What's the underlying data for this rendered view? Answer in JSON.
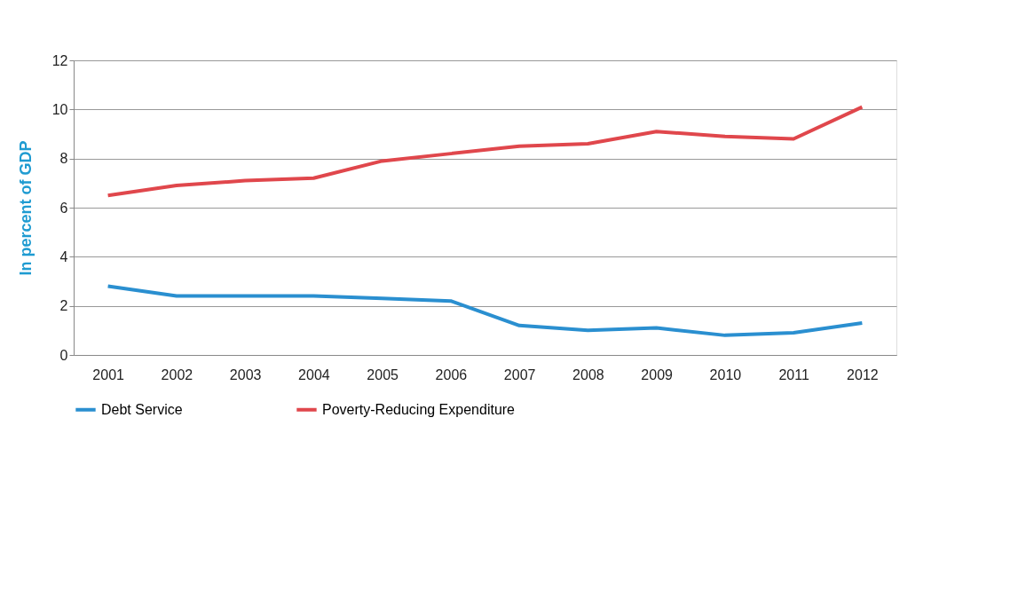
{
  "chart_data": {
    "type": "line",
    "ylabel": "In percent of GDP",
    "categories": [
      "2001",
      "2002",
      "2003",
      "2004",
      "2005",
      "2006",
      "2007",
      "2008",
      "2009",
      "2010",
      "2011",
      "2012"
    ],
    "series": [
      {
        "name": "Debt Service",
        "color": "#2a8fd0",
        "values": [
          2.8,
          2.4,
          2.4,
          2.4,
          2.3,
          2.2,
          1.2,
          1.0,
          1.1,
          0.8,
          0.9,
          1.3
        ]
      },
      {
        "name": "Poverty-Reducing Expenditure",
        "color": "#e0474c",
        "values": [
          6.5,
          6.9,
          7.1,
          7.2,
          7.9,
          8.2,
          8.5,
          8.6,
          9.1,
          8.9,
          8.8,
          10.1
        ]
      }
    ],
    "ylim": [
      0,
      12
    ],
    "yticks": [
      0,
      2,
      4,
      6,
      8,
      10,
      12
    ],
    "grid": "y",
    "legend": "bottom",
    "marker": "none",
    "line_style": "solid"
  }
}
